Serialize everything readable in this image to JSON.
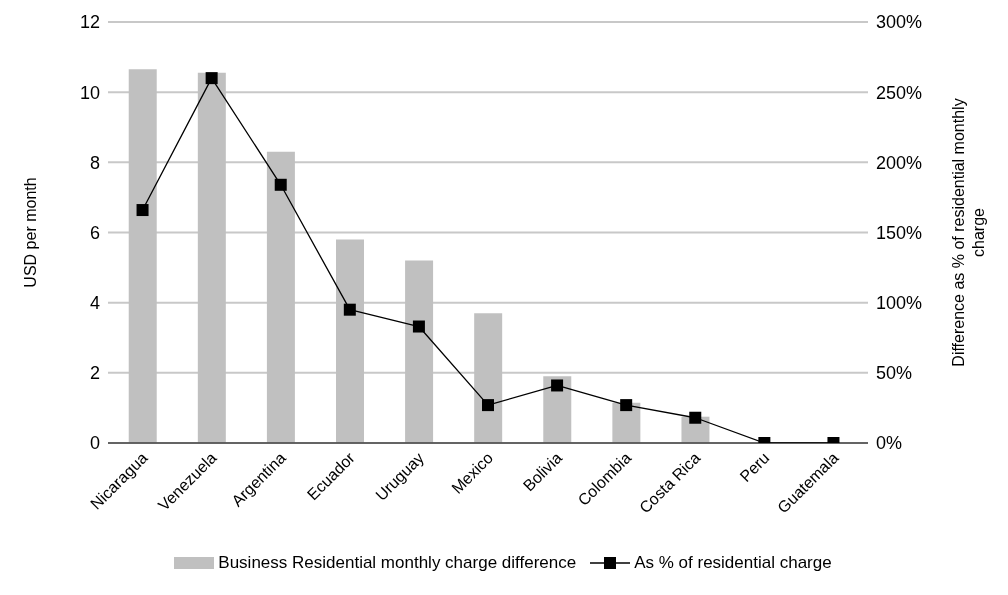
{
  "chart_data": {
    "type": "bar",
    "categories": [
      "Nicaragua",
      "Venezuela",
      "Argentina",
      "Ecuador",
      "Uruguay",
      "Mexico",
      "Bolivia",
      "Colombia",
      "Costa Rica",
      "Peru",
      "Guatemala"
    ],
    "ylabel": "USD per month",
    "y2label": "Difference as % of residential monthly charge",
    "ylim": [
      0,
      12
    ],
    "yticks": [
      0,
      2,
      4,
      6,
      8,
      10,
      12
    ],
    "y2lim": [
      0,
      300
    ],
    "y2ticks": [
      {
        "value": 0,
        "label": "0%"
      },
      {
        "value": 50,
        "label": "50%"
      },
      {
        "value": 100,
        "label": "100%"
      },
      {
        "value": 150,
        "label": "150%"
      },
      {
        "value": 200,
        "label": "200%"
      },
      {
        "value": 250,
        "label": "250%"
      },
      {
        "value": 300,
        "label": "300%"
      }
    ],
    "series": [
      {
        "name": "Business Residential monthly charge difference",
        "color": "#c0c0c0",
        "values": [
          10.65,
          10.55,
          8.3,
          5.8,
          5.2,
          3.7,
          1.9,
          1.15,
          0.75,
          0,
          0
        ]
      },
      {
        "name": "As % of residential charge",
        "type": "line",
        "axis": "y2",
        "color": "#000000",
        "marker": "square",
        "values": [
          166,
          260,
          184,
          95,
          83,
          27,
          41,
          27,
          18,
          0,
          0
        ]
      }
    ],
    "grid": "y",
    "legend": "bottom"
  }
}
